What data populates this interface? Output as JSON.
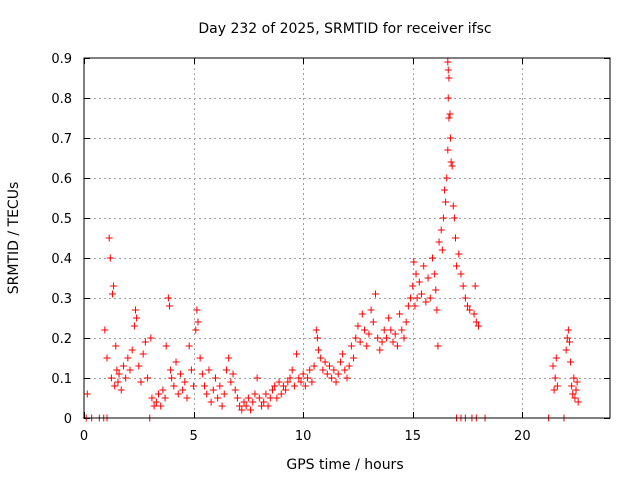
{
  "chart_data": {
    "type": "scatter",
    "title": "Day 232 of 2025, SRMTID for receiver ifsc",
    "xlabel": "GPS time / hours",
    "ylabel": "SRMTID / TECUs",
    "xlim": [
      0,
      24
    ],
    "ylim": [
      0,
      0.9
    ],
    "xticks": [
      0,
      5,
      10,
      15,
      20
    ],
    "yticks": [
      0,
      0.1,
      0.2,
      0.3,
      0.4,
      0.5,
      0.6,
      0.7,
      0.8,
      0.9
    ],
    "grid": true,
    "marker": "+",
    "marker_color": "#ff0000",
    "series": [
      {
        "name": "SRMTID",
        "points": [
          [
            0.1,
            0.0
          ],
          [
            0.15,
            0.06
          ],
          [
            0.35,
            0.0
          ],
          [
            0.7,
            0.0
          ],
          [
            0.9,
            0.0
          ],
          [
            1.05,
            0.0
          ],
          [
            0.95,
            0.22
          ],
          [
            1.05,
            0.15
          ],
          [
            1.15,
            0.45
          ],
          [
            1.2,
            0.4
          ],
          [
            1.25,
            0.1
          ],
          [
            1.3,
            0.31
          ],
          [
            1.35,
            0.33
          ],
          [
            1.4,
            0.08
          ],
          [
            1.45,
            0.18
          ],
          [
            1.5,
            0.12
          ],
          [
            1.55,
            0.09
          ],
          [
            1.6,
            0.11
          ],
          [
            1.7,
            0.07
          ],
          [
            1.8,
            0.13
          ],
          [
            1.9,
            0.1
          ],
          [
            2.0,
            0.15
          ],
          [
            2.1,
            0.12
          ],
          [
            2.2,
            0.17
          ],
          [
            2.3,
            0.23
          ],
          [
            2.35,
            0.27
          ],
          [
            2.4,
            0.25
          ],
          [
            2.5,
            0.13
          ],
          [
            2.6,
            0.09
          ],
          [
            2.7,
            0.16
          ],
          [
            2.8,
            0.19
          ],
          [
            2.9,
            0.1
          ],
          [
            3.0,
            0.0
          ],
          [
            3.05,
            0.2
          ],
          [
            3.1,
            0.05
          ],
          [
            3.2,
            0.03
          ],
          [
            3.3,
            0.04
          ],
          [
            3.4,
            0.06
          ],
          [
            3.5,
            0.03
          ],
          [
            3.6,
            0.07
          ],
          [
            3.7,
            0.05
          ],
          [
            3.75,
            0.18
          ],
          [
            3.85,
            0.3
          ],
          [
            3.9,
            0.28
          ],
          [
            3.95,
            0.12
          ],
          [
            4.0,
            0.1
          ],
          [
            4.1,
            0.08
          ],
          [
            4.2,
            0.14
          ],
          [
            4.3,
            0.06
          ],
          [
            4.4,
            0.11
          ],
          [
            4.5,
            0.07
          ],
          [
            4.6,
            0.09
          ],
          [
            4.7,
            0.05
          ],
          [
            4.8,
            0.18
          ],
          [
            4.9,
            0.12
          ],
          [
            5.0,
            0.08
          ],
          [
            5.1,
            0.22
          ],
          [
            5.15,
            0.27
          ],
          [
            5.2,
            0.24
          ],
          [
            5.3,
            0.15
          ],
          [
            5.4,
            0.11
          ],
          [
            5.5,
            0.08
          ],
          [
            5.6,
            0.06
          ],
          [
            5.7,
            0.12
          ],
          [
            5.8,
            0.04
          ],
          [
            5.9,
            0.07
          ],
          [
            6.0,
            0.1
          ],
          [
            6.1,
            0.05
          ],
          [
            6.2,
            0.08
          ],
          [
            6.3,
            0.03
          ],
          [
            6.4,
            0.06
          ],
          [
            6.5,
            0.12
          ],
          [
            6.6,
            0.15
          ],
          [
            6.7,
            0.09
          ],
          [
            6.8,
            0.11
          ],
          [
            6.9,
            0.07
          ],
          [
            7.0,
            0.05
          ],
          [
            7.1,
            0.03
          ],
          [
            7.2,
            0.02
          ],
          [
            7.3,
            0.04
          ],
          [
            7.4,
            0.03
          ],
          [
            7.5,
            0.05
          ],
          [
            7.6,
            0.02
          ],
          [
            7.7,
            0.04
          ],
          [
            7.8,
            0.06
          ],
          [
            7.9,
            0.1
          ],
          [
            8.0,
            0.05
          ],
          [
            8.1,
            0.03
          ],
          [
            8.2,
            0.04
          ],
          [
            8.3,
            0.06
          ],
          [
            8.4,
            0.03
          ],
          [
            8.5,
            0.05
          ],
          [
            8.6,
            0.07
          ],
          [
            8.7,
            0.08
          ],
          [
            8.8,
            0.05
          ],
          [
            8.9,
            0.09
          ],
          [
            9.0,
            0.06
          ],
          [
            9.1,
            0.08
          ],
          [
            9.2,
            0.07
          ],
          [
            9.3,
            0.09
          ],
          [
            9.4,
            0.1
          ],
          [
            9.5,
            0.12
          ],
          [
            9.6,
            0.08
          ],
          [
            9.7,
            0.16
          ],
          [
            9.8,
            0.1
          ],
          [
            9.9,
            0.09
          ],
          [
            10.0,
            0.11
          ],
          [
            10.1,
            0.08
          ],
          [
            10.2,
            0.1
          ],
          [
            10.3,
            0.12
          ],
          [
            10.4,
            0.09
          ],
          [
            10.5,
            0.13
          ],
          [
            10.6,
            0.22
          ],
          [
            10.65,
            0.2
          ],
          [
            10.7,
            0.17
          ],
          [
            10.8,
            0.15
          ],
          [
            10.9,
            0.12
          ],
          [
            11.0,
            0.14
          ],
          [
            11.1,
            0.11
          ],
          [
            11.2,
            0.13
          ],
          [
            11.3,
            0.1
          ],
          [
            11.4,
            0.12
          ],
          [
            11.5,
            0.09
          ],
          [
            11.6,
            0.11
          ],
          [
            11.7,
            0.14
          ],
          [
            11.8,
            0.16
          ],
          [
            11.9,
            0.12
          ],
          [
            12.0,
            0.1
          ],
          [
            12.1,
            0.13
          ],
          [
            12.2,
            0.18
          ],
          [
            12.3,
            0.15
          ],
          [
            12.4,
            0.2
          ],
          [
            12.5,
            0.23
          ],
          [
            12.6,
            0.19
          ],
          [
            12.7,
            0.26
          ],
          [
            12.8,
            0.22
          ],
          [
            12.9,
            0.18
          ],
          [
            13.0,
            0.21
          ],
          [
            13.1,
            0.27
          ],
          [
            13.2,
            0.24
          ],
          [
            13.3,
            0.31
          ],
          [
            13.4,
            0.2
          ],
          [
            13.5,
            0.17
          ],
          [
            13.6,
            0.19
          ],
          [
            13.7,
            0.22
          ],
          [
            13.8,
            0.2
          ],
          [
            13.9,
            0.25
          ],
          [
            14.0,
            0.22
          ],
          [
            14.1,
            0.19
          ],
          [
            14.2,
            0.21
          ],
          [
            14.3,
            0.18
          ],
          [
            14.4,
            0.26
          ],
          [
            14.5,
            0.22
          ],
          [
            14.6,
            0.2
          ],
          [
            14.7,
            0.24
          ],
          [
            14.8,
            0.28
          ],
          [
            14.9,
            0.3
          ],
          [
            15.0,
            0.33
          ],
          [
            15.05,
            0.39
          ],
          [
            15.1,
            0.28
          ],
          [
            15.15,
            0.36
          ],
          [
            15.2,
            0.3
          ],
          [
            15.3,
            0.34
          ],
          [
            15.4,
            0.31
          ],
          [
            15.5,
            0.38
          ],
          [
            15.6,
            0.29
          ],
          [
            15.7,
            0.35
          ],
          [
            15.8,
            0.3
          ],
          [
            15.9,
            0.4
          ],
          [
            16.0,
            0.36
          ],
          [
            16.05,
            0.32
          ],
          [
            16.1,
            0.27
          ],
          [
            16.15,
            0.18
          ],
          [
            16.2,
            0.44
          ],
          [
            16.3,
            0.47
          ],
          [
            16.35,
            0.42
          ],
          [
            16.4,
            0.5
          ],
          [
            16.45,
            0.57
          ],
          [
            16.5,
            0.54
          ],
          [
            16.55,
            0.6
          ],
          [
            16.6,
            0.67
          ],
          [
            16.6,
            0.89
          ],
          [
            16.62,
            0.87
          ],
          [
            16.65,
            0.85
          ],
          [
            16.62,
            0.8
          ],
          [
            16.65,
            0.75
          ],
          [
            16.7,
            0.76
          ],
          [
            16.72,
            0.7
          ],
          [
            16.75,
            0.64
          ],
          [
            16.8,
            0.63
          ],
          [
            16.85,
            0.53
          ],
          [
            16.9,
            0.5
          ],
          [
            16.95,
            0.45
          ],
          [
            17.0,
            0.38
          ],
          [
            17.1,
            0.41
          ],
          [
            17.2,
            0.36
          ],
          [
            17.3,
            0.33
          ],
          [
            17.4,
            0.3
          ],
          [
            17.5,
            0.28
          ],
          [
            17.6,
            0.27
          ],
          [
            17.8,
            0.26
          ],
          [
            17.85,
            0.33
          ],
          [
            17.9,
            0.24
          ],
          [
            18.0,
            0.23
          ],
          [
            17.0,
            0.0
          ],
          [
            17.2,
            0.0
          ],
          [
            17.4,
            0.0
          ],
          [
            17.7,
            0.0
          ],
          [
            17.9,
            0.0
          ],
          [
            18.3,
            0.0
          ],
          [
            21.2,
            0.0
          ],
          [
            21.4,
            0.13
          ],
          [
            21.5,
            0.1
          ],
          [
            21.6,
            0.08
          ],
          [
            21.45,
            0.07
          ],
          [
            21.55,
            0.15
          ],
          [
            21.9,
            0.0
          ],
          [
            22.0,
            0.17
          ],
          [
            22.05,
            0.2
          ],
          [
            22.1,
            0.22
          ],
          [
            22.15,
            0.19
          ],
          [
            22.2,
            0.14
          ],
          [
            22.25,
            0.08
          ],
          [
            22.3,
            0.06
          ],
          [
            22.35,
            0.1
          ],
          [
            22.4,
            0.05
          ],
          [
            22.45,
            0.07
          ],
          [
            22.5,
            0.09
          ],
          [
            22.55,
            0.04
          ]
        ]
      }
    ]
  }
}
